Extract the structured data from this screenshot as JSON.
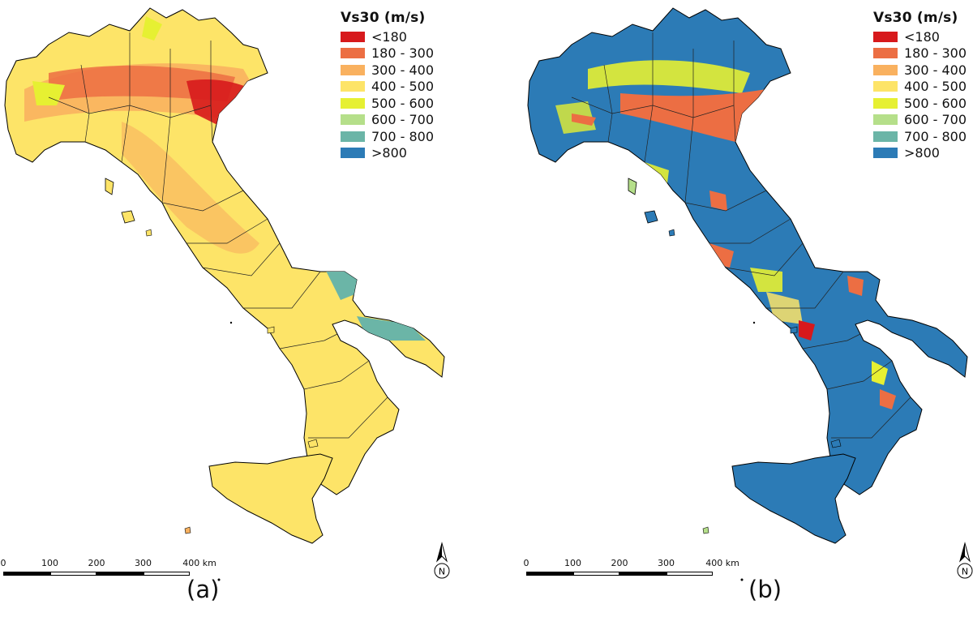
{
  "legend": {
    "title": "Vs30 (m/s)",
    "classes": [
      {
        "label": "<180",
        "color": "#d7191c"
      },
      {
        "label": "180 - 300",
        "color": "#ec6e43"
      },
      {
        "label": "300 - 400",
        "color": "#f9b15f"
      },
      {
        "label": "400 - 500",
        "color": "#fde468"
      },
      {
        "label": "500 - 600",
        "color": "#e6f032"
      },
      {
        "label": "600 - 700",
        "color": "#b5df8a"
      },
      {
        "label": "700 - 800",
        "color": "#6bb5a7"
      },
      {
        "label": ">800",
        "color": "#2c7bb6"
      }
    ]
  },
  "scale_bar": {
    "ticks": [
      "0",
      "100",
      "200",
      "300",
      "400 km"
    ]
  },
  "north_arrow": {
    "label": "N"
  },
  "panels": [
    {
      "label": "(a)",
      "base_color": "#fde468",
      "secondary_color": "#f9b15f"
    },
    {
      "label": "(b)",
      "base_color": "#2c7bb6",
      "secondary_color": "#e6f032"
    }
  ]
}
